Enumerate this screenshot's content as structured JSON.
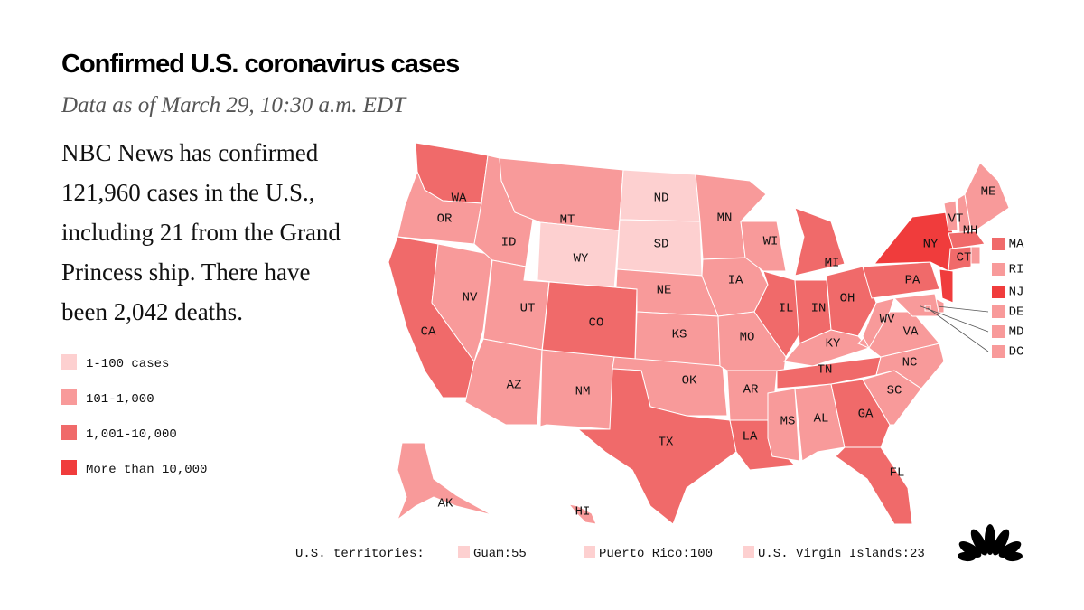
{
  "header": {
    "title": "Confirmed U.S. coronavirus cases",
    "subtitle": "Data as of March 29, 10:30 a.m. EDT"
  },
  "body": {
    "lines": [
      "NBC News has confirmed",
      "121,960 cases in the U.S.,",
      "including 21 from the Grand",
      "Princess ship.  There have",
      "been 2,042 deaths."
    ]
  },
  "legend": [
    {
      "label": "1-100 cases",
      "color": "#fdd0d0"
    },
    {
      "label": "101-1,000",
      "color": "#f89a9a"
    },
    {
      "label": "1,001-10,000",
      "color": "#f06a6a"
    },
    {
      "label": "More than 10,000",
      "color": "#f03c3c"
    }
  ],
  "states": [
    {
      "abbr": "WA",
      "category": 2
    },
    {
      "abbr": "OR",
      "category": 1
    },
    {
      "abbr": "CA",
      "category": 2
    },
    {
      "abbr": "NV",
      "category": 1
    },
    {
      "abbr": "ID",
      "category": 1
    },
    {
      "abbr": "MT",
      "category": 1
    },
    {
      "abbr": "WY",
      "category": 0
    },
    {
      "abbr": "UT",
      "category": 1
    },
    {
      "abbr": "CO",
      "category": 2
    },
    {
      "abbr": "AZ",
      "category": 1
    },
    {
      "abbr": "NM",
      "category": 1
    },
    {
      "abbr": "ND",
      "category": 0
    },
    {
      "abbr": "SD",
      "category": 0
    },
    {
      "abbr": "NE",
      "category": 1
    },
    {
      "abbr": "KS",
      "category": 1
    },
    {
      "abbr": "OK",
      "category": 1
    },
    {
      "abbr": "TX",
      "category": 2
    },
    {
      "abbr": "MN",
      "category": 1
    },
    {
      "abbr": "IA",
      "category": 1
    },
    {
      "abbr": "WI",
      "category": 1
    },
    {
      "abbr": "IL",
      "category": 2
    },
    {
      "abbr": "MO",
      "category": 1
    },
    {
      "abbr": "AR",
      "category": 1
    },
    {
      "abbr": "LA",
      "category": 2
    },
    {
      "abbr": "MI",
      "category": 2
    },
    {
      "abbr": "IN",
      "category": 2
    },
    {
      "abbr": "OH",
      "category": 2
    },
    {
      "abbr": "KY",
      "category": 1
    },
    {
      "abbr": "TN",
      "category": 2
    },
    {
      "abbr": "MS",
      "category": 1
    },
    {
      "abbr": "AL",
      "category": 1
    },
    {
      "abbr": "GA",
      "category": 2
    },
    {
      "abbr": "FL",
      "category": 2
    },
    {
      "abbr": "SC",
      "category": 1
    },
    {
      "abbr": "NC",
      "category": 1
    },
    {
      "abbr": "VA",
      "category": 1
    },
    {
      "abbr": "WV",
      "category": 1
    },
    {
      "abbr": "PA",
      "category": 2
    },
    {
      "abbr": "NY",
      "category": 3
    },
    {
      "abbr": "VT",
      "category": 1
    },
    {
      "abbr": "NH",
      "category": 1
    },
    {
      "abbr": "ME",
      "category": 1
    },
    {
      "abbr": "MA",
      "category": 2
    },
    {
      "abbr": "CT",
      "category": 2
    },
    {
      "abbr": "RI",
      "category": 1
    },
    {
      "abbr": "NJ",
      "category": 3
    },
    {
      "abbr": "DE",
      "category": 1
    },
    {
      "abbr": "MD",
      "category": 1
    },
    {
      "abbr": "DC",
      "category": 1
    },
    {
      "abbr": "AK",
      "category": 1
    },
    {
      "abbr": "HI",
      "category": 1
    }
  ],
  "territories": {
    "label": "U.S. territories:",
    "items": [
      {
        "label": "Guam:55",
        "category": 0
      },
      {
        "label": "Puerto Rico:100",
        "category": 0
      },
      {
        "label": "U.S. Virgin Islands:23",
        "category": 0
      }
    ]
  }
}
